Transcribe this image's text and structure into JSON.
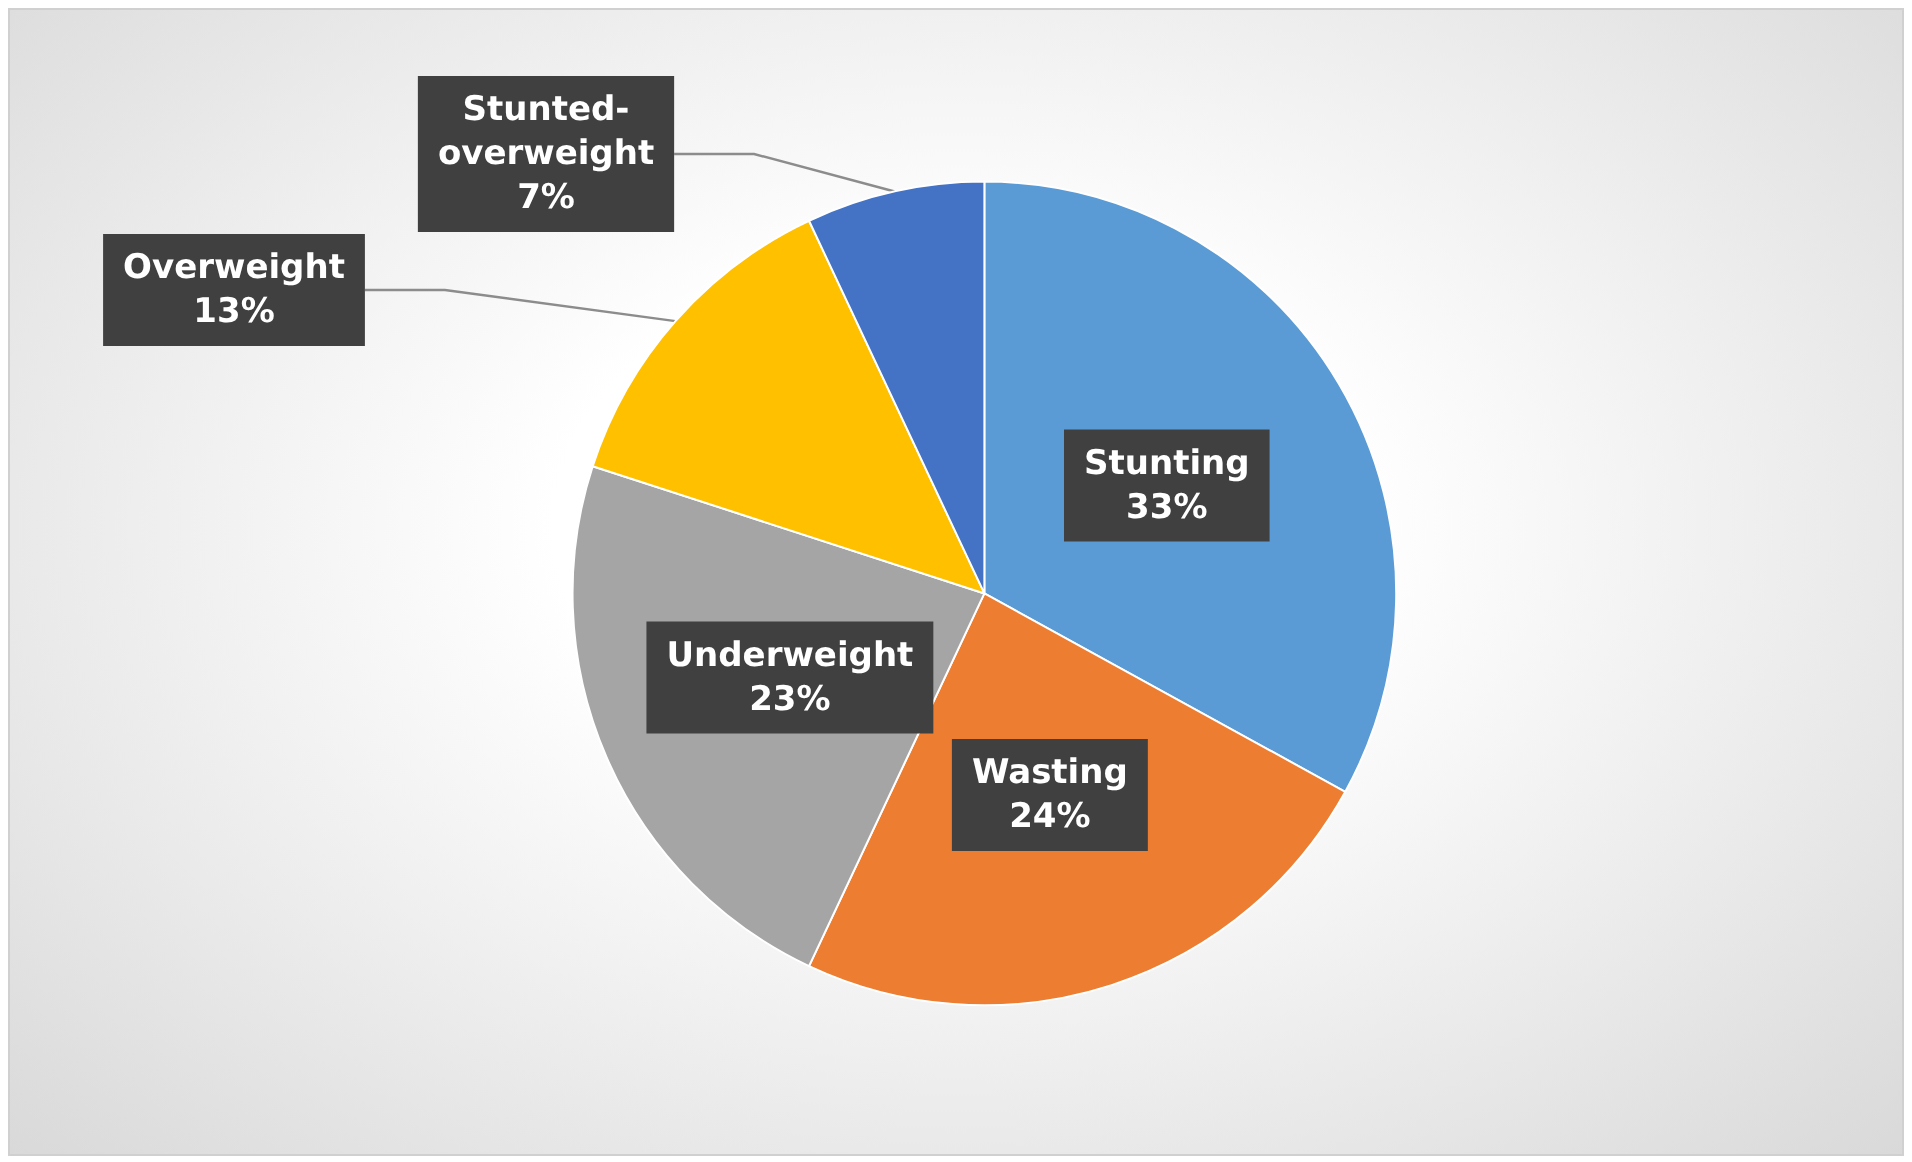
{
  "chart_data": {
    "type": "pie",
    "categories": [
      "Stunting",
      "Wasting",
      "Underweight",
      "Overweight",
      "Stunted-overweight"
    ],
    "values": [
      33,
      24,
      23,
      13,
      7
    ],
    "value_labels": [
      "33%",
      "24%",
      "23%",
      "13%",
      "7%"
    ],
    "colors": [
      "#5b9bd5",
      "#ed7d31",
      "#a5a5a5",
      "#ffc000",
      "#4472c4"
    ],
    "data_labels": true
  }
}
